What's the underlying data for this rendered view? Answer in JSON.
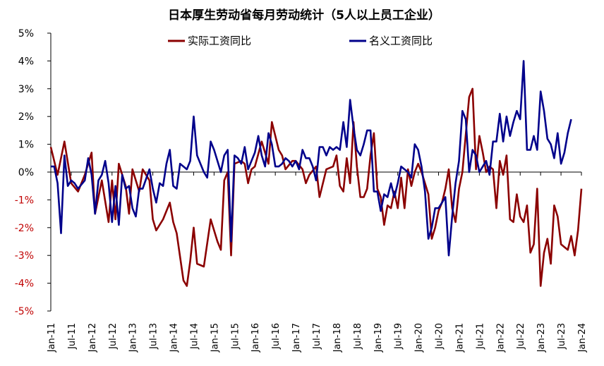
{
  "chart_data": {
    "type": "line",
    "title": "日本厚生劳动省每月劳动统计（5人以上员工企业）",
    "ylim": [
      -5,
      5
    ],
    "y_ticks": [
      "5%",
      "4%",
      "3%",
      "2%",
      "1%",
      "0%",
      "-1%",
      "-2%",
      "-3%",
      "-4%",
      "-5%"
    ],
    "x_ticks": [
      "Jan-11",
      "Jul-11",
      "Jan-12",
      "Jul-12",
      "Jan-13",
      "Jul-13",
      "Jan-14",
      "Jul-14",
      "Jan-15",
      "Jul-15",
      "Jan-16",
      "Jul-16",
      "Jan-17",
      "Jul-17",
      "Jan-18",
      "Jul-18",
      "Jan-19",
      "Jul-19",
      "Jan-20",
      "Jul-20",
      "Jan-21",
      "Jul-21",
      "Jan-22",
      "Jul-22",
      "Jan-23",
      "Jul-23",
      "Jan-24"
    ],
    "x_range": [
      "2011-01",
      "2024-01"
    ],
    "legend_position": "top",
    "grid": false,
    "series": [
      {
        "name": "实际工资同比",
        "color": "#8b0000",
        "values": [
          [
            "2011-01",
            0.9
          ],
          [
            "2011-03",
            -0.1
          ],
          [
            "2011-05",
            1.1
          ],
          [
            "2011-07",
            -0.4
          ],
          [
            "2011-09",
            -0.7
          ],
          [
            "2011-11",
            -0.1
          ],
          [
            "2012-01",
            0.7
          ],
          [
            "2012-02",
            -1.5
          ],
          [
            "2012-04",
            -0.3
          ],
          [
            "2012-06",
            -1.8
          ],
          [
            "2012-07",
            -0.3
          ],
          [
            "2012-08",
            -1.7
          ],
          [
            "2012-09",
            0.3
          ],
          [
            "2012-11",
            -0.5
          ],
          [
            "2012-12",
            -1.5
          ],
          [
            "2013-01",
            0.1
          ],
          [
            "2013-03",
            -0.7
          ],
          [
            "2013-04",
            0.1
          ],
          [
            "2013-06",
            -0.3
          ],
          [
            "2013-07",
            -1.7
          ],
          [
            "2013-08",
            -2.1
          ],
          [
            "2013-10",
            -1.7
          ],
          [
            "2013-12",
            -1.1
          ],
          [
            "2014-01",
            -1.8
          ],
          [
            "2014-02",
            -2.2
          ],
          [
            "2014-04",
            -3.9
          ],
          [
            "2014-05",
            -4.1
          ],
          [
            "2014-06",
            -3.2
          ],
          [
            "2014-07",
            -2.0
          ],
          [
            "2014-08",
            -3.3
          ],
          [
            "2014-10",
            -3.4
          ],
          [
            "2014-12",
            -1.7
          ],
          [
            "2015-02",
            -2.5
          ],
          [
            "2015-03",
            -2.8
          ],
          [
            "2015-04",
            -0.3
          ],
          [
            "2015-05",
            0.0
          ],
          [
            "2015-06",
            -3.0
          ],
          [
            "2015-07",
            0.3
          ],
          [
            "2015-09",
            0.4
          ],
          [
            "2015-10",
            0.3
          ],
          [
            "2015-11",
            -0.4
          ],
          [
            "2015-12",
            0.1
          ],
          [
            "2016-01",
            0.2
          ],
          [
            "2016-03",
            1.1
          ],
          [
            "2016-05",
            0.3
          ],
          [
            "2016-06",
            1.8
          ],
          [
            "2016-07",
            1.3
          ],
          [
            "2016-08",
            0.8
          ],
          [
            "2016-09",
            0.6
          ],
          [
            "2016-10",
            0.1
          ],
          [
            "2016-12",
            0.4
          ],
          [
            "2017-01",
            0.4
          ],
          [
            "2017-03",
            0.1
          ],
          [
            "2017-04",
            -0.4
          ],
          [
            "2017-05",
            -0.1
          ],
          [
            "2017-07",
            0.2
          ],
          [
            "2017-08",
            -0.9
          ],
          [
            "2017-10",
            0.1
          ],
          [
            "2017-12",
            0.2
          ],
          [
            "2018-01",
            0.6
          ],
          [
            "2018-02",
            -0.5
          ],
          [
            "2018-03",
            -0.7
          ],
          [
            "2018-04",
            0.5
          ],
          [
            "2018-05",
            -0.4
          ],
          [
            "2018-06",
            1.8
          ],
          [
            "2018-07",
            0.2
          ],
          [
            "2018-08",
            -0.9
          ],
          [
            "2018-09",
            -0.9
          ],
          [
            "2018-10",
            -0.6
          ],
          [
            "2018-11",
            0.6
          ],
          [
            "2018-12",
            1.4
          ],
          [
            "2019-01",
            -0.6
          ],
          [
            "2019-02",
            -0.9
          ],
          [
            "2019-03",
            -1.9
          ],
          [
            "2019-04",
            -1.2
          ],
          [
            "2019-05",
            -1.3
          ],
          [
            "2019-06",
            -0.7
          ],
          [
            "2019-07",
            -1.3
          ],
          [
            "2019-08",
            -0.2
          ],
          [
            "2019-09",
            -1.3
          ],
          [
            "2019-10",
            0.1
          ],
          [
            "2019-11",
            -0.5
          ],
          [
            "2019-12",
            0.0
          ],
          [
            "2020-01",
            0.3
          ],
          [
            "2020-02",
            0.0
          ],
          [
            "2020-03",
            -0.4
          ],
          [
            "2020-04",
            -0.8
          ],
          [
            "2020-05",
            -2.4
          ],
          [
            "2020-06",
            -2.0
          ],
          [
            "2020-07",
            -1.4
          ],
          [
            "2020-08",
            -1.1
          ],
          [
            "2020-09",
            -0.6
          ],
          [
            "2020-10",
            0.1
          ],
          [
            "2020-11",
            -1.3
          ],
          [
            "2020-12",
            -1.8
          ],
          [
            "2021-01",
            -0.6
          ],
          [
            "2021-02",
            0.0
          ],
          [
            "2021-04",
            2.7
          ],
          [
            "2021-05",
            3.0
          ],
          [
            "2021-06",
            0.1
          ],
          [
            "2021-07",
            1.3
          ],
          [
            "2021-08",
            0.7
          ],
          [
            "2021-09",
            0.0
          ],
          [
            "2021-10",
            0.2
          ],
          [
            "2021-11",
            0.1
          ],
          [
            "2021-12",
            -1.3
          ],
          [
            "2022-01",
            0.4
          ],
          [
            "2022-02",
            -0.1
          ],
          [
            "2022-03",
            0.6
          ],
          [
            "2022-04",
            -1.7
          ],
          [
            "2022-05",
            -1.8
          ],
          [
            "2022-06",
            -0.8
          ],
          [
            "2022-07",
            -1.6
          ],
          [
            "2022-08",
            -1.8
          ],
          [
            "2022-09",
            -1.2
          ],
          [
            "2022-10",
            -2.9
          ],
          [
            "2022-11",
            -2.6
          ],
          [
            "2022-12",
            -0.6
          ],
          [
            "2023-01",
            -4.1
          ],
          [
            "2023-02",
            -2.9
          ],
          [
            "2023-03",
            -2.4
          ],
          [
            "2023-04",
            -3.3
          ],
          [
            "2023-05",
            -1.2
          ],
          [
            "2023-06",
            -1.6
          ],
          [
            "2023-07",
            -2.6
          ],
          [
            "2023-08",
            -2.7
          ],
          [
            "2023-09",
            -2.8
          ],
          [
            "2023-10",
            -2.3
          ],
          [
            "2023-11",
            -3.0
          ],
          [
            "2023-12",
            -2.1
          ],
          [
            "2024-01",
            -0.6
          ]
        ]
      },
      {
        "name": "名义工资同比",
        "color": "#00008b",
        "values": [
          [
            "2011-01",
            0.2
          ],
          [
            "2011-02",
            0.2
          ],
          [
            "2011-03",
            -0.4
          ],
          [
            "2011-04",
            -2.2
          ],
          [
            "2011-05",
            0.6
          ],
          [
            "2011-06",
            -0.5
          ],
          [
            "2011-07",
            -0.3
          ],
          [
            "2011-08",
            -0.4
          ],
          [
            "2011-09",
            -0.6
          ],
          [
            "2011-11",
            -0.3
          ],
          [
            "2011-12",
            0.5
          ],
          [
            "2012-01",
            -0.1
          ],
          [
            "2012-02",
            -1.5
          ],
          [
            "2012-03",
            -0.3
          ],
          [
            "2012-04",
            -0.1
          ],
          [
            "2012-05",
            0.4
          ],
          [
            "2012-06",
            -0.4
          ],
          [
            "2012-07",
            -1.8
          ],
          [
            "2012-08",
            -0.5
          ],
          [
            "2012-09",
            -1.9
          ],
          [
            "2012-10",
            -0.1
          ],
          [
            "2012-11",
            -0.6
          ],
          [
            "2012-12",
            -0.5
          ],
          [
            "2013-01",
            -1.3
          ],
          [
            "2013-02",
            -1.6
          ],
          [
            "2013-03",
            -0.6
          ],
          [
            "2013-04",
            -0.6
          ],
          [
            "2013-06",
            0.1
          ],
          [
            "2013-07",
            -0.6
          ],
          [
            "2013-08",
            -1.1
          ],
          [
            "2013-09",
            -0.4
          ],
          [
            "2013-10",
            -0.5
          ],
          [
            "2013-11",
            0.3
          ],
          [
            "2013-12",
            0.8
          ],
          [
            "2014-01",
            -0.5
          ],
          [
            "2014-02",
            -0.6
          ],
          [
            "2014-03",
            0.3
          ],
          [
            "2014-04",
            0.2
          ],
          [
            "2014-05",
            0.1
          ],
          [
            "2014-06",
            0.4
          ],
          [
            "2014-07",
            2.0
          ],
          [
            "2014-08",
            0.6
          ],
          [
            "2014-09",
            0.3
          ],
          [
            "2014-10",
            0.0
          ],
          [
            "2014-11",
            -0.2
          ],
          [
            "2014-12",
            1.1
          ],
          [
            "2015-01",
            0.8
          ],
          [
            "2015-02",
            0.4
          ],
          [
            "2015-03",
            0.0
          ],
          [
            "2015-04",
            0.6
          ],
          [
            "2015-05",
            0.8
          ],
          [
            "2015-06",
            -2.5
          ],
          [
            "2015-07",
            0.6
          ],
          [
            "2015-08",
            0.5
          ],
          [
            "2015-09",
            0.3
          ],
          [
            "2015-10",
            0.9
          ],
          [
            "2015-11",
            0.1
          ],
          [
            "2015-12",
            0.4
          ],
          [
            "2016-01",
            0.7
          ],
          [
            "2016-02",
            1.3
          ],
          [
            "2016-03",
            0.6
          ],
          [
            "2016-04",
            0.2
          ],
          [
            "2016-05",
            1.4
          ],
          [
            "2016-06",
            1.0
          ],
          [
            "2016-07",
            0.2
          ],
          [
            "2016-08",
            0.2
          ],
          [
            "2016-09",
            0.3
          ],
          [
            "2016-10",
            0.5
          ],
          [
            "2016-11",
            0.4
          ],
          [
            "2016-12",
            0.2
          ],
          [
            "2017-01",
            0.4
          ],
          [
            "2017-02",
            0.1
          ],
          [
            "2017-03",
            0.8
          ],
          [
            "2017-04",
            0.5
          ],
          [
            "2017-05",
            0.5
          ],
          [
            "2017-06",
            0.2
          ],
          [
            "2017-07",
            -0.3
          ],
          [
            "2017-08",
            0.9
          ],
          [
            "2017-09",
            0.9
          ],
          [
            "2017-10",
            0.6
          ],
          [
            "2017-11",
            0.9
          ],
          [
            "2017-12",
            0.8
          ],
          [
            "2018-01",
            0.9
          ],
          [
            "2018-02",
            0.8
          ],
          [
            "2018-03",
            1.8
          ],
          [
            "2018-04",
            0.9
          ],
          [
            "2018-05",
            2.6
          ],
          [
            "2018-06",
            1.6
          ],
          [
            "2018-07",
            0.8
          ],
          [
            "2018-08",
            0.6
          ],
          [
            "2018-09",
            1.0
          ],
          [
            "2018-10",
            1.5
          ],
          [
            "2018-11",
            1.5
          ],
          [
            "2018-12",
            -0.7
          ],
          [
            "2019-01",
            -0.7
          ],
          [
            "2019-02",
            -1.4
          ],
          [
            "2019-03",
            -0.8
          ],
          [
            "2019-04",
            -0.9
          ],
          [
            "2019-05",
            -0.4
          ],
          [
            "2019-06",
            -0.9
          ],
          [
            "2019-07",
            -0.4
          ],
          [
            "2019-08",
            0.2
          ],
          [
            "2019-09",
            0.1
          ],
          [
            "2019-10",
            0.0
          ],
          [
            "2019-11",
            -0.2
          ],
          [
            "2019-12",
            1.0
          ],
          [
            "2020-01",
            0.8
          ],
          [
            "2020-02",
            0.2
          ],
          [
            "2020-03",
            -0.7
          ],
          [
            "2020-04",
            -2.4
          ],
          [
            "2020-05",
            -2.0
          ],
          [
            "2020-06",
            -1.3
          ],
          [
            "2020-07",
            -1.3
          ],
          [
            "2020-08",
            -1.1
          ],
          [
            "2020-09",
            -0.9
          ],
          [
            "2020-10",
            -3.0
          ],
          [
            "2020-11",
            -1.6
          ],
          [
            "2020-12",
            -0.4
          ],
          [
            "2021-01",
            0.4
          ],
          [
            "2021-02",
            2.2
          ],
          [
            "2021-03",
            1.9
          ],
          [
            "2021-04",
            0.0
          ],
          [
            "2021-05",
            0.8
          ],
          [
            "2021-06",
            0.6
          ],
          [
            "2021-07",
            0.0
          ],
          [
            "2021-08",
            0.2
          ],
          [
            "2021-09",
            0.4
          ],
          [
            "2021-10",
            -0.1
          ],
          [
            "2021-11",
            1.1
          ],
          [
            "2021-12",
            1.1
          ],
          [
            "2022-01",
            2.1
          ],
          [
            "2022-02",
            1.1
          ],
          [
            "2022-03",
            2.0
          ],
          [
            "2022-04",
            1.3
          ],
          [
            "2022-05",
            1.8
          ],
          [
            "2022-06",
            2.2
          ],
          [
            "2022-07",
            1.9
          ],
          [
            "2022-08",
            4.0
          ],
          [
            "2022-09",
            0.8
          ],
          [
            "2022-10",
            0.8
          ],
          [
            "2022-11",
            1.3
          ],
          [
            "2022-12",
            0.8
          ],
          [
            "2023-01",
            2.9
          ],
          [
            "2023-02",
            2.2
          ],
          [
            "2023-03",
            1.2
          ],
          [
            "2023-04",
            1.0
          ],
          [
            "2023-05",
            0.5
          ],
          [
            "2023-06",
            1.4
          ],
          [
            "2023-07",
            0.3
          ],
          [
            "2023-08",
            0.7
          ],
          [
            "2023-09",
            1.4
          ],
          [
            "2023-10",
            1.9
          ]
        ]
      }
    ]
  }
}
